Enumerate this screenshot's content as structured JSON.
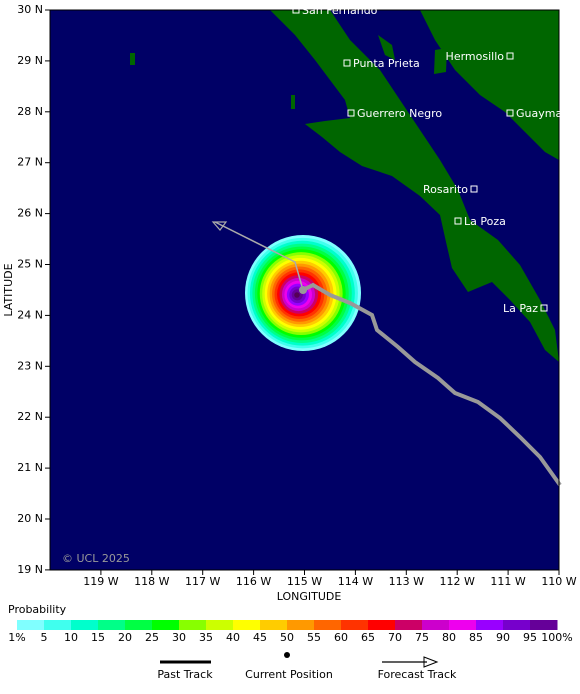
{
  "map": {
    "x_axis_label": "LONGITUDE",
    "y_axis_label": "LATITUDE",
    "lat_ticks": [
      "30 N",
      "29 N",
      "28 N",
      "27 N",
      "26 N",
      "25 N",
      "24 N",
      "23 N",
      "22 N",
      "21 N",
      "20 N",
      "19 N"
    ],
    "lon_ticks": [
      "119 W",
      "118 W",
      "117 W",
      "116 W",
      "115 W",
      "114 W",
      "113 W",
      "112 W",
      "111 W",
      "110 W"
    ],
    "cities": [
      "San Fernando",
      "Punta Prieta",
      "Hermosillo",
      "Guerrero Negro",
      "Guaymas",
      "Rosarito",
      "La Poza",
      "La Paz"
    ],
    "watermark": "© UCL 2025",
    "ocean_color": "#000066",
    "land_color": "#006600"
  },
  "legend": {
    "title": "Probability",
    "scale_labels": [
      "1%",
      "5",
      "10",
      "15",
      "20",
      "25",
      "30",
      "35",
      "40",
      "45",
      "50",
      "55",
      "60",
      "65",
      "70",
      "75",
      "80",
      "85",
      "90",
      "95",
      "100%"
    ],
    "colors": [
      "#80ffff",
      "#40ffee",
      "#00ffcc",
      "#00ff88",
      "#00ff44",
      "#00ff00",
      "#88ff00",
      "#ccff00",
      "#ffff00",
      "#ffcc00",
      "#ff9900",
      "#ff6600",
      "#ff3300",
      "#ff0000",
      "#cc0066",
      "#cc00cc",
      "#ee00ee",
      "#9900ff",
      "#7700cc",
      "#660099",
      "#550055"
    ],
    "items": [
      "Past Track",
      "Current Position",
      "Forecast Track"
    ]
  }
}
